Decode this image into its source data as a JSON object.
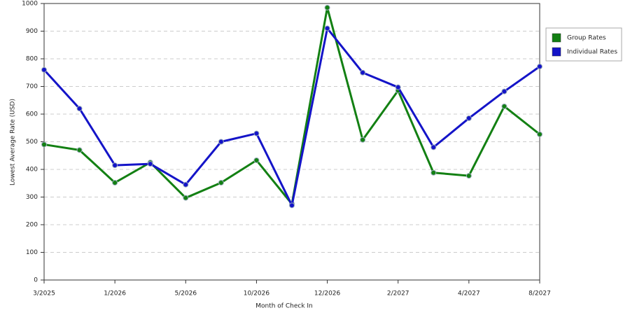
{
  "chart_data": {
    "type": "line",
    "x_label": "Month of Check In",
    "y_label": "Lowest Average Rate (USD)",
    "categories": [
      "3/2025",
      null,
      "1/2026",
      null,
      "5/2026",
      null,
      "10/2026",
      null,
      "12/2026",
      null,
      "2/2027",
      null,
      "4/2027",
      null,
      "8/2027"
    ],
    "series": [
      {
        "name": "Group Rates",
        "color": "#138013",
        "values": [
          490,
          470,
          352,
          425,
          297,
          352,
          433,
          275,
          985,
          507,
          685,
          388,
          377,
          628,
          527
        ]
      },
      {
        "name": "Individual Rates",
        "color": "#1414c8",
        "values": [
          760,
          620,
          415,
          420,
          345,
          500,
          530,
          270,
          910,
          750,
          697,
          480,
          585,
          682,
          772
        ]
      }
    ],
    "ylim": [
      0,
      1000
    ],
    "yticks": [
      0,
      100,
      200,
      300,
      400,
      500,
      600,
      700,
      800,
      900,
      1000
    ],
    "grid": true,
    "legend": "right"
  }
}
